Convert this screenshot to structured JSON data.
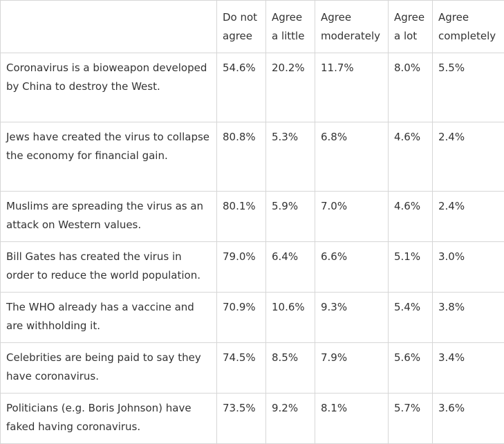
{
  "table": {
    "headers": [
      "",
      "Do not agree",
      "Agree a little",
      "Agree moderately",
      "Agree a lot",
      "Agree completely"
    ],
    "rows": [
      {
        "statement": "Coronavirus is a bioweapon developed by China to destroy the West.",
        "values": [
          "54.6%",
          "20.2%",
          "11.7%",
          "8.0%",
          "5.5%"
        ]
      },
      {
        "statement": "Jews have created the virus to collapse the economy for financial gain.",
        "values": [
          "80.8%",
          "5.3%",
          "6.8%",
          "4.6%",
          "2.4%"
        ]
      },
      {
        "statement": "Muslims are spreading the virus as an attack on Western values.",
        "values": [
          "80.1%",
          "5.9%",
          "7.0%",
          "4.6%",
          "2.4%"
        ]
      },
      {
        "statement": "Bill Gates has created the virus in order to reduce the world population.",
        "values": [
          "79.0%",
          "6.4%",
          "6.6%",
          "5.1%",
          "3.0%"
        ]
      },
      {
        "statement": "The WHO already has a vaccine and are withholding it.",
        "values": [
          "70.9%",
          "10.6%",
          "9.3%",
          "5.4%",
          "3.8%"
        ]
      },
      {
        "statement": "Celebrities are being paid to say they have coronavirus.",
        "values": [
          "74.5%",
          "8.5%",
          "7.9%",
          "5.6%",
          "3.4%"
        ]
      },
      {
        "statement": "Politicians (e.g. Boris Johnson) have faked having coronavirus.",
        "values": [
          "73.5%",
          "9.2%",
          "8.1%",
          "5.7%",
          "3.6%"
        ]
      }
    ]
  }
}
